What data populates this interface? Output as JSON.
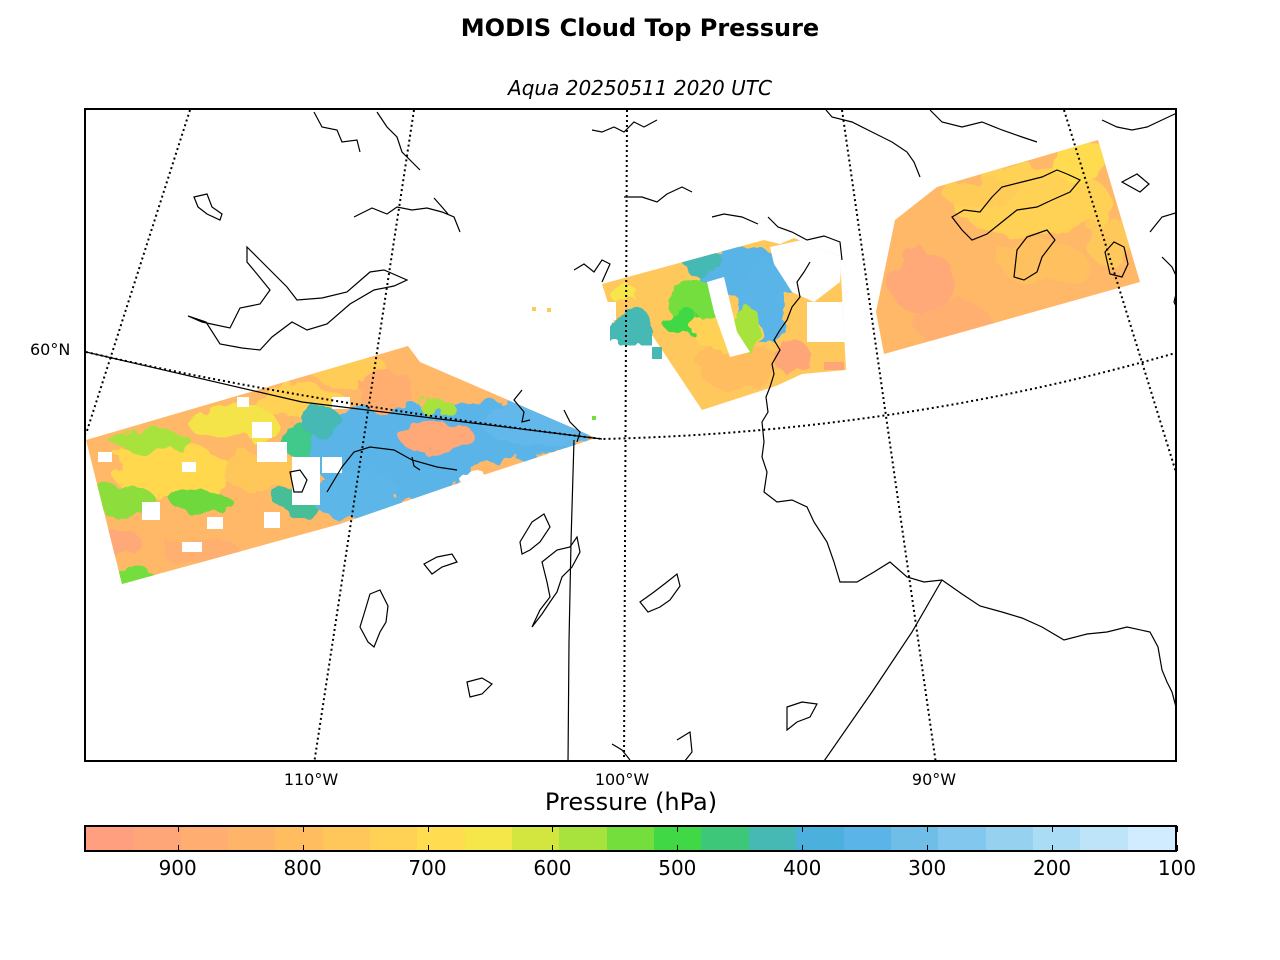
{
  "title": "MODIS Cloud Top Pressure",
  "subtitle": "Aqua 20250511 2020 UTC",
  "map": {
    "lat_labels": [
      "60°N"
    ],
    "lon_labels": [
      "110°W",
      "100°W",
      "90°W"
    ],
    "coastline_color": "#000000",
    "graticule_style": "dotted"
  },
  "colorbar": {
    "label": "Pressure (hPa)",
    "tick_labels": [
      "900",
      "800",
      "700",
      "600",
      "500",
      "400",
      "300",
      "200",
      "100"
    ],
    "range": [
      975,
      100
    ],
    "colors": [
      "#ff9f7f",
      "#ffa679",
      "#ffad70",
      "#ffb569",
      "#ffbd60",
      "#ffc75a",
      "#ffd154",
      "#ffdc50",
      "#f5e64a",
      "#d2e63f",
      "#a8e23c",
      "#73de3c",
      "#40d844",
      "#3cc878",
      "#46b9b4",
      "#4bb0dc",
      "#5ab4e8",
      "#6ebee8",
      "#82c8ee",
      "#96d2f0",
      "#aadcf5",
      "#bee4fa",
      "#d2ecff"
    ]
  },
  "chart_data": {
    "type": "heatmap",
    "title": "MODIS Cloud Top Pressure",
    "subtitle": "Aqua 20250511 2020 UTC",
    "colorbar_label": "Pressure (hPa)",
    "colorbar_range": [
      975,
      100
    ],
    "colorbar_ticks": [
      900,
      800,
      700,
      600,
      500,
      400,
      300,
      200,
      100
    ],
    "swaths": [
      {
        "region": "western swath",
        "dominant_pressure_hPa": [
          850,
          700
        ],
        "secondary_pressure_hPa": [
          500,
          350
        ]
      },
      {
        "region": "central swath",
        "dominant_pressure_hPa": [
          750,
          450
        ],
        "secondary_pressure_hPa": [
          400,
          350
        ]
      },
      {
        "region": "eastern swath",
        "dominant_pressure_hPa": [
          850,
          750
        ]
      }
    ]
  }
}
